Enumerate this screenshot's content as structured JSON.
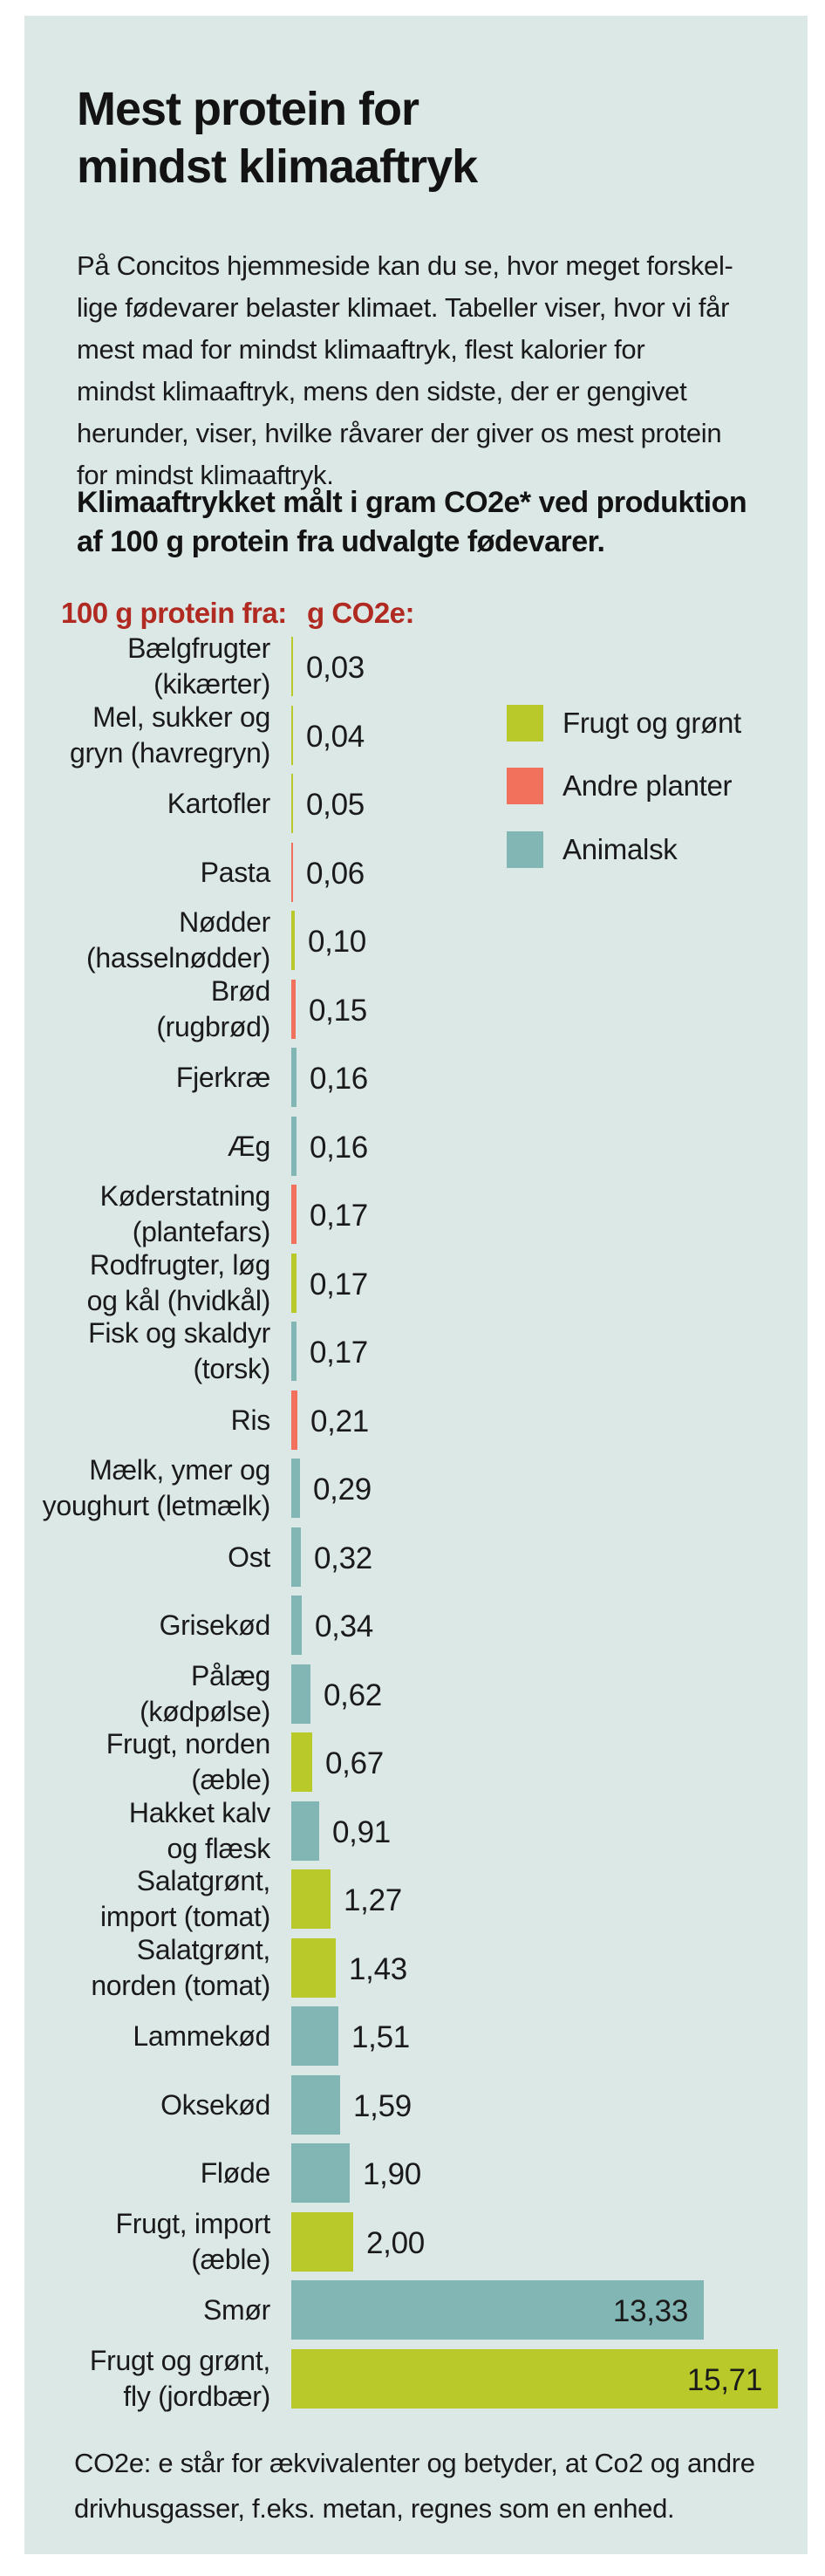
{
  "colors": {
    "page_background": "#ffffff",
    "panel_background": "#dce8e6",
    "heading_red": "#b12a21",
    "text_dark": "#1a1a1a"
  },
  "title": {
    "line1": "Mest protein for",
    "line2": "mindst klimaaftryk"
  },
  "intro": {
    "lines": [
      "På Concitos hjemmeside kan du se, hvor meget forskel-",
      "lige fødevarer belaster klimaet. Tabeller viser, hvor vi får",
      "mest mad for mindst klimaaftryk, flest kalorier for",
      "mindst klimaaftryk, mens den sidste, der er gengivet",
      "herunder, viser, hvilke råvarer der giver os mest protein",
      "for mindst klimaaftryk."
    ]
  },
  "subtitle": {
    "lines": [
      "Klimaaftrykket målt i gram CO2e* ved produktion",
      "af 100 g protein fra udvalgte fødevarer."
    ]
  },
  "column_headers": {
    "left": "100 g protein fra:",
    "right": "g CO2e:"
  },
  "legend": {
    "items": [
      {
        "key": "frugt",
        "label": "Frugt og grønt"
      },
      {
        "key": "andre",
        "label": "Andre planter"
      },
      {
        "key": "animalsk",
        "label": "Animalsk"
      }
    ]
  },
  "chart_data": {
    "type": "bar",
    "orientation": "horizontal",
    "title": "Klimaaftrykket målt i gram CO2e* ved produktion af 100 g protein fra udvalgte fødevarer.",
    "xlabel": "g CO2e",
    "ylabel": "100 g protein fra",
    "xlim": [
      0,
      15.71
    ],
    "grid": false,
    "legend_position": "right-top",
    "colors": {
      "frugt": "#b9c929",
      "andre": "#f2715c",
      "animalsk": "#82b6b5"
    },
    "rows": [
      {
        "name": "Bælgfrugter (kikærter)",
        "label": "Bælgfrugter\n(kikærter)",
        "value": 0.03,
        "value_label": "0,03",
        "category": "frugt",
        "value_inside": false
      },
      {
        "name": "Mel, sukker og gryn (havregryn)",
        "label": "Mel, sukker og\ngryn (havregryn)",
        "value": 0.04,
        "value_label": "0,04",
        "category": "frugt",
        "value_inside": false
      },
      {
        "name": "Kartofler",
        "label": "Kartofler",
        "value": 0.05,
        "value_label": "0,05",
        "category": "frugt",
        "value_inside": false
      },
      {
        "name": "Pasta",
        "label": "Pasta",
        "value": 0.06,
        "value_label": "0,06",
        "category": "andre",
        "value_inside": false
      },
      {
        "name": "Nødder (hasselnødder)",
        "label": "Nødder\n(hasselnødder)",
        "value": 0.1,
        "value_label": "0,10",
        "category": "frugt",
        "value_inside": false
      },
      {
        "name": "Brød (rugbrød)",
        "label": "Brød\n(rugbrød)",
        "value": 0.15,
        "value_label": "0,15",
        "category": "andre",
        "value_inside": false
      },
      {
        "name": "Fjerkræ",
        "label": "Fjerkræ",
        "value": 0.16,
        "value_label": "0,16",
        "category": "animalsk",
        "value_inside": false
      },
      {
        "name": "Æg",
        "label": "Æg",
        "value": 0.16,
        "value_label": "0,16",
        "category": "animalsk",
        "value_inside": false
      },
      {
        "name": "Køderstatning (plantefars)",
        "label": "Køderstatning\n(plantefars)",
        "value": 0.17,
        "value_label": "0,17",
        "category": "andre",
        "value_inside": false
      },
      {
        "name": "Rodfrugter, løg og kål (hvidkål)",
        "label": "Rodfrugter, løg\nog kål (hvidkål)",
        "value": 0.17,
        "value_label": "0,17",
        "category": "frugt",
        "value_inside": false
      },
      {
        "name": "Fisk og skaldyr (torsk)",
        "label": "Fisk og skaldyr\n(torsk)",
        "value": 0.17,
        "value_label": "0,17",
        "category": "animalsk",
        "value_inside": false
      },
      {
        "name": "Ris",
        "label": "Ris",
        "value": 0.21,
        "value_label": "0,21",
        "category": "andre",
        "value_inside": false
      },
      {
        "name": "Mælk, ymer og youghurt (letmælk)",
        "label": "Mælk, ymer og\nyoughurt (letmælk)",
        "value": 0.29,
        "value_label": "0,29",
        "category": "animalsk",
        "value_inside": false
      },
      {
        "name": "Ost",
        "label": "Ost",
        "value": 0.32,
        "value_label": "0,32",
        "category": "animalsk",
        "value_inside": false
      },
      {
        "name": "Grisekød",
        "label": "Grisekød",
        "value": 0.34,
        "value_label": "0,34",
        "category": "animalsk",
        "value_inside": false
      },
      {
        "name": "Pålæg (kødpølse)",
        "label": "Pålæg\n(kødpølse)",
        "value": 0.62,
        "value_label": "0,62",
        "category": "animalsk",
        "value_inside": false
      },
      {
        "name": "Frugt, norden (æble)",
        "label": "Frugt, norden\n(æble)",
        "value": 0.67,
        "value_label": "0,67",
        "category": "frugt",
        "value_inside": false
      },
      {
        "name": "Hakket kalv og flæsk",
        "label": "Hakket kalv\nog flæsk",
        "value": 0.91,
        "value_label": "0,91",
        "category": "animalsk",
        "value_inside": false
      },
      {
        "name": "Salatgrønt, import (tomat)",
        "label": "Salatgrønt,\nimport (tomat)",
        "value": 1.27,
        "value_label": "1,27",
        "category": "frugt",
        "value_inside": false
      },
      {
        "name": "Salatgrønt, norden (tomat)",
        "label": "Salatgrønt,\nnorden (tomat)",
        "value": 1.43,
        "value_label": "1,43",
        "category": "frugt",
        "value_inside": false
      },
      {
        "name": "Lammekød",
        "label": "Lammekød",
        "value": 1.51,
        "value_label": "1,51",
        "category": "animalsk",
        "value_inside": false
      },
      {
        "name": "Oksekød",
        "label": "Oksekød",
        "value": 1.59,
        "value_label": "1,59",
        "category": "animalsk",
        "value_inside": false
      },
      {
        "name": "Fløde",
        "label": "Fløde",
        "value": 1.9,
        "value_label": "1,90",
        "category": "animalsk",
        "value_inside": false
      },
      {
        "name": "Frugt, import (æble)",
        "label": "Frugt, import\n(æble)",
        "value": 2.0,
        "value_label": "2,00",
        "category": "frugt",
        "value_inside": false
      },
      {
        "name": "Smør",
        "label": "Smør",
        "value": 13.33,
        "value_label": "13,33",
        "category": "animalsk",
        "value_inside": true
      },
      {
        "name": "Frugt og grønt, fly (jordbær)",
        "label": "Frugt og grønt,\nfly (jordbær)",
        "value": 15.71,
        "value_label": "15,71",
        "category": "frugt",
        "value_inside": true
      }
    ]
  },
  "footnote": {
    "lines": [
      "CO2e: e står for ækvivalenter og betyder, at Co2 og andre",
      "drivhusgasser, f.eks. metan, regnes som en enhed."
    ]
  }
}
